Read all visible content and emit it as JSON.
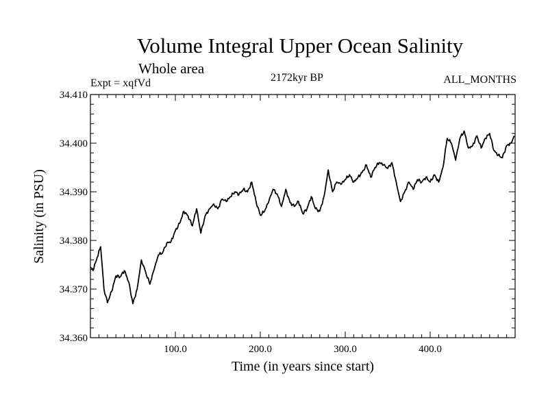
{
  "chart_data": {
    "type": "line",
    "title": "Volume Integral Upper Ocean Salinity",
    "subtitle": "Whole area",
    "experiment_label": "Expt = xqfVd",
    "period_label": "2172kyr BP",
    "months_label": "ALL_MONTHS",
    "xlabel": "Time (in years since start)",
    "ylabel": "Salinity (in PSU)",
    "xlim": [
      0,
      500
    ],
    "ylim": [
      34.36,
      34.41
    ],
    "x_ticks": [
      100,
      200,
      300,
      400
    ],
    "x_tick_labels": [
      "100.0",
      "200.0",
      "300.0",
      "400.0"
    ],
    "y_ticks": [
      34.36,
      34.37,
      34.38,
      34.39,
      34.4,
      34.41
    ],
    "y_tick_labels": [
      "34.360",
      "34.370",
      "34.380",
      "34.390",
      "34.400",
      "34.410"
    ],
    "grid": false,
    "series": [
      {
        "name": "Salinity",
        "color": "#000000",
        "x": [
          0,
          3,
          8,
          12,
          16,
          20,
          25,
          30,
          35,
          40,
          45,
          50,
          55,
          60,
          65,
          70,
          75,
          80,
          85,
          90,
          95,
          100,
          105,
          110,
          115,
          120,
          125,
          130,
          135,
          140,
          145,
          150,
          155,
          160,
          165,
          170,
          175,
          180,
          185,
          190,
          195,
          200,
          205,
          210,
          215,
          220,
          225,
          230,
          235,
          240,
          245,
          250,
          255,
          260,
          265,
          270,
          275,
          280,
          285,
          290,
          295,
          300,
          305,
          310,
          315,
          320,
          325,
          330,
          335,
          340,
          345,
          350,
          355,
          360,
          365,
          370,
          375,
          380,
          385,
          390,
          395,
          400,
          405,
          410,
          415,
          420,
          425,
          430,
          435,
          440,
          445,
          450,
          455,
          460,
          465,
          470,
          475,
          480,
          485,
          490,
          495,
          499
        ],
        "values": [
          34.3745,
          34.3738,
          34.3765,
          34.3787,
          34.37,
          34.3672,
          34.3695,
          34.3727,
          34.3725,
          34.3738,
          34.3715,
          34.367,
          34.37,
          34.376,
          34.3735,
          34.371,
          34.374,
          34.377,
          34.3775,
          34.3795,
          34.3798,
          34.382,
          34.3835,
          34.386,
          34.385,
          34.383,
          34.3865,
          34.3815,
          34.385,
          34.3865,
          34.3875,
          34.3865,
          34.3885,
          34.388,
          34.389,
          34.39,
          34.3895,
          34.3905,
          34.39,
          34.392,
          34.388,
          34.3852,
          34.386,
          34.388,
          34.3905,
          34.3895,
          34.387,
          34.3905,
          34.3878,
          34.387,
          34.388,
          34.3855,
          34.3865,
          34.389,
          34.3865,
          34.386,
          34.389,
          34.3945,
          34.39,
          34.392,
          34.3915,
          34.3925,
          34.3935,
          34.392,
          34.393,
          34.394,
          34.3955,
          34.393,
          34.395,
          34.396,
          34.3955,
          34.3948,
          34.396,
          34.392,
          34.388,
          34.39,
          34.392,
          34.3905,
          34.3925,
          34.392,
          34.393,
          34.392,
          34.3935,
          34.392,
          34.395,
          34.401,
          34.4,
          34.3965,
          34.401,
          34.4025,
          34.399,
          34.3995,
          34.4015,
          34.399,
          34.401,
          34.402,
          34.3985,
          34.3975,
          34.397,
          34.3995,
          34.4,
          34.4015
        ]
      }
    ]
  }
}
